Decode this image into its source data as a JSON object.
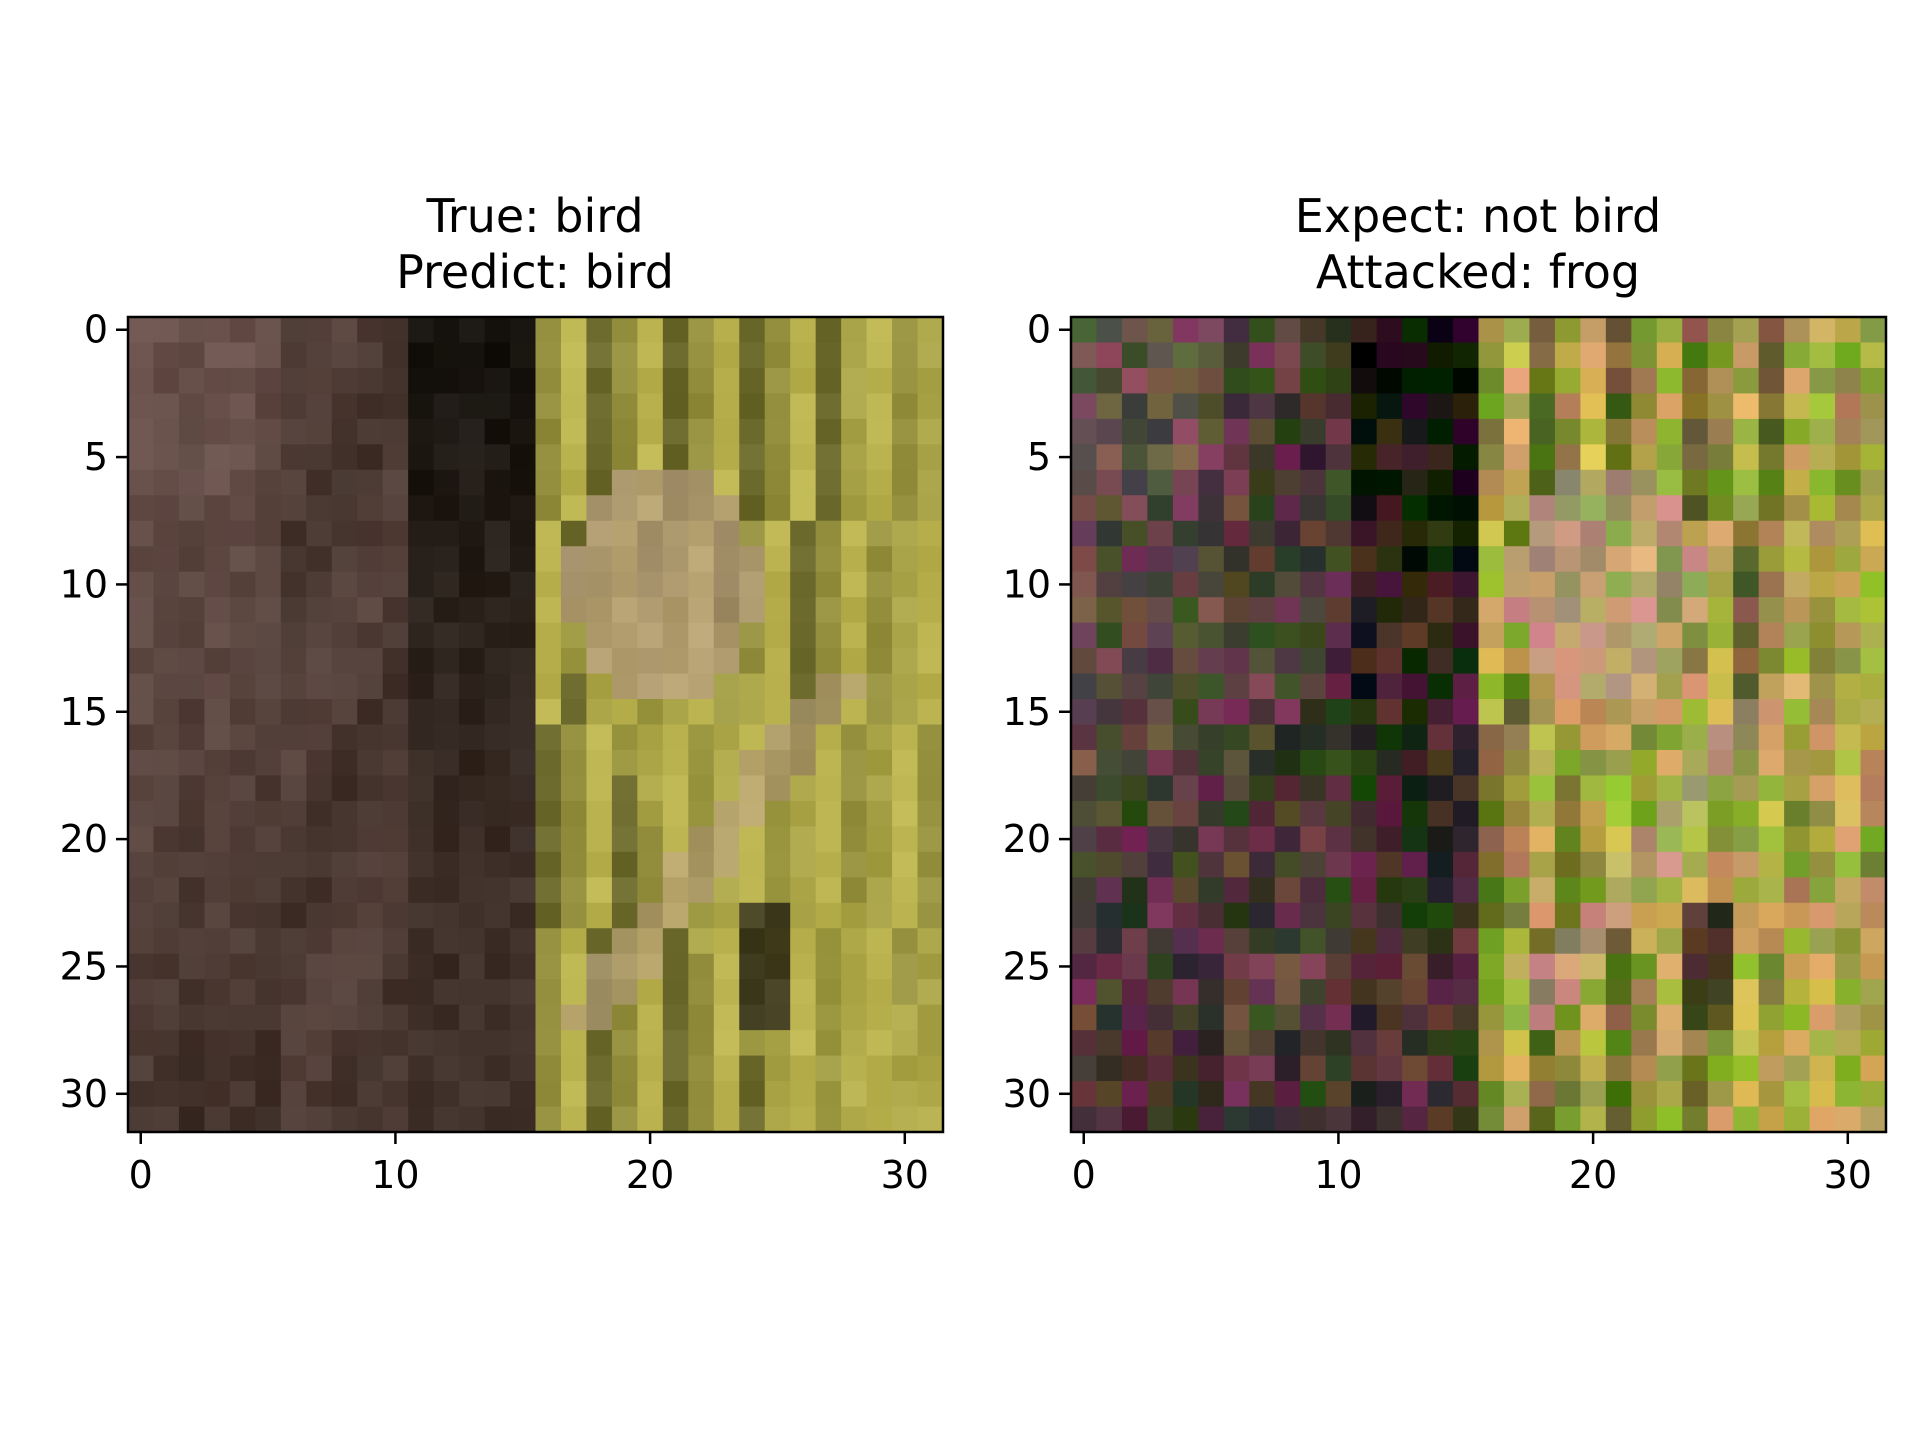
{
  "figure": {
    "panels": [
      {
        "title_line1": "True: bird",
        "title_line2": "Predict: bird",
        "image_kind": "original",
        "x_ticks": [
          "0",
          "10",
          "20",
          "30"
        ],
        "y_ticks": [
          "0",
          "5",
          "10",
          "15",
          "20",
          "25",
          "30"
        ]
      },
      {
        "title_line1": "Expect: not bird",
        "title_line2": "Attacked: frog",
        "image_kind": "adversarial",
        "x_ticks": [
          "0",
          "10",
          "20",
          "30"
        ],
        "y_ticks": [
          "0",
          "5",
          "10",
          "15",
          "20",
          "25",
          "30"
        ]
      }
    ],
    "image_size": 32,
    "palette": {
      "dark_brown": "#3e2f28",
      "mauve_brown": "#6f5550",
      "tan": "#b49b7c",
      "olive": "#6b6a2c",
      "yellow_green": "#b9b24f",
      "black": "#15120d"
    }
  }
}
